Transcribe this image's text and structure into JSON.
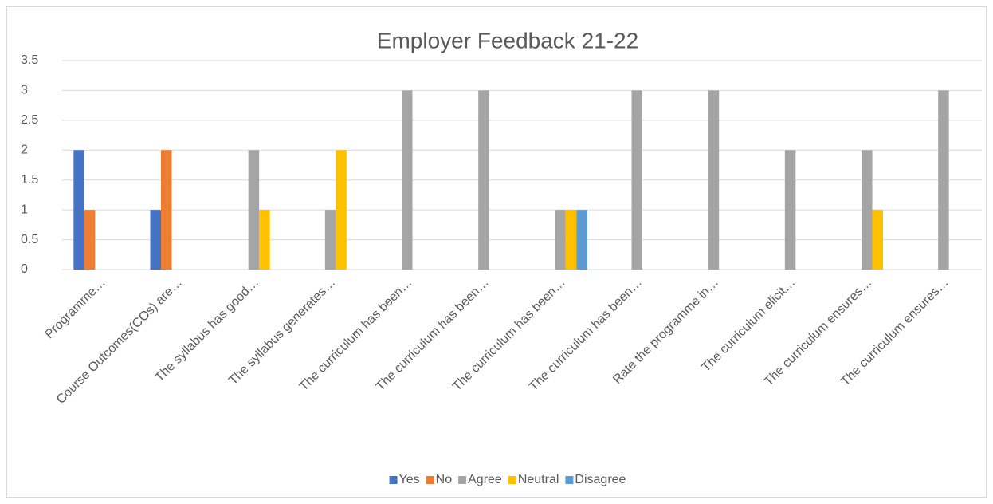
{
  "chart_data": {
    "type": "bar",
    "title": "Employer Feedback 21-22",
    "categories": [
      "Programme…",
      "Course Outcomes(COs) are…",
      "The syllabus has good…",
      "The syllabus generates…",
      "The curriculum has been…",
      "The curriculum has been…",
      "The curriculum has been…",
      "The curriculum has been…",
      "Rate the programme in…",
      "The curriculum elicit…",
      "The curriculum ensures…",
      "The curriculum ensures…"
    ],
    "series": [
      {
        "name": "Yes",
        "color": "#4472c4",
        "values": [
          2,
          1,
          null,
          null,
          null,
          null,
          null,
          null,
          null,
          null,
          null,
          null
        ]
      },
      {
        "name": "No",
        "color": "#ed7d31",
        "values": [
          1,
          2,
          null,
          null,
          null,
          null,
          null,
          null,
          null,
          null,
          null,
          null
        ]
      },
      {
        "name": "Agree",
        "color": "#a5a5a5",
        "values": [
          null,
          null,
          2,
          1,
          3,
          3,
          1,
          3,
          3,
          2,
          2,
          3
        ]
      },
      {
        "name": "Neutral",
        "color": "#ffc000",
        "values": [
          null,
          null,
          1,
          2,
          null,
          null,
          1,
          null,
          null,
          null,
          1,
          null
        ]
      },
      {
        "name": "Disagree",
        "color": "#5b9bd5",
        "values": [
          null,
          null,
          null,
          null,
          null,
          null,
          1,
          null,
          null,
          null,
          null,
          null
        ]
      }
    ],
    "ylim": [
      0,
      3.5
    ],
    "yticks": [
      0,
      0.5,
      1,
      1.5,
      2,
      2.5,
      3,
      3.5
    ],
    "grid": true,
    "legend": "bottom"
  }
}
